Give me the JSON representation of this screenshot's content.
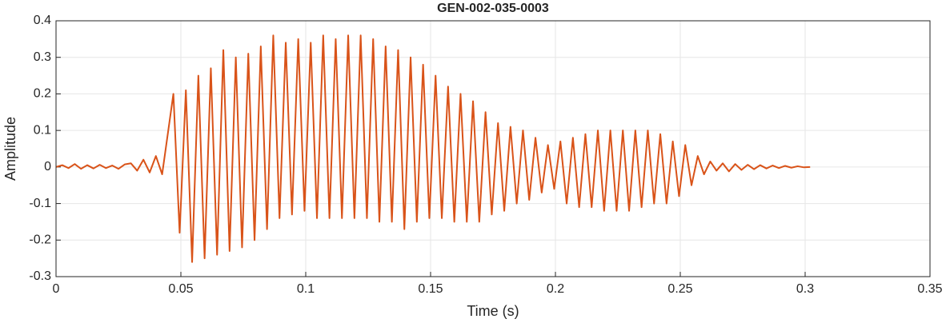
{
  "chart_data": {
    "type": "line",
    "title": "GEN-002-035-0003",
    "xlabel": "Time (s)",
    "ylabel": "Amplitude",
    "color": "#d95319",
    "grid": true,
    "xlim": [
      0,
      0.35
    ],
    "ylim": [
      -0.3,
      0.4
    ],
    "xticks": [
      0,
      0.05,
      0.1,
      0.15,
      0.2,
      0.25,
      0.3,
      0.35
    ],
    "yticks": [
      -0.3,
      -0.2,
      -0.1,
      0,
      0.1,
      0.2,
      0.3,
      0.4
    ],
    "x": [
      0,
      0.0025,
      0.005,
      0.0075,
      0.01,
      0.0125,
      0.015,
      0.0175,
      0.02,
      0.0225,
      0.025,
      0.0275,
      0.03,
      0.0325,
      0.035,
      0.0375,
      0.04,
      0.0425,
      0.047,
      0.0495,
      0.052,
      0.0545,
      0.057,
      0.0595,
      0.062,
      0.0645,
      0.067,
      0.0695,
      0.072,
      0.0745,
      0.077,
      0.0795,
      0.082,
      0.0845,
      0.087,
      0.0895,
      0.092,
      0.0945,
      0.097,
      0.0995,
      0.102,
      0.1045,
      0.107,
      0.1095,
      0.112,
      0.1145,
      0.117,
      0.1195,
      0.122,
      0.1245,
      0.127,
      0.1295,
      0.132,
      0.1345,
      0.137,
      0.1395,
      0.142,
      0.1445,
      0.147,
      0.1495,
      0.152,
      0.1545,
      0.157,
      0.1595,
      0.162,
      0.1645,
      0.167,
      0.1695,
      0.172,
      0.1745,
      0.177,
      0.1795,
      0.182,
      0.1845,
      0.187,
      0.1895,
      0.192,
      0.1945,
      0.197,
      0.1995,
      0.202,
      0.2045,
      0.207,
      0.2095,
      0.212,
      0.2145,
      0.217,
      0.2195,
      0.222,
      0.2245,
      0.227,
      0.2295,
      0.232,
      0.2345,
      0.237,
      0.2395,
      0.242,
      0.2445,
      0.247,
      0.2495,
      0.252,
      0.2545,
      0.257,
      0.2595,
      0.262,
      0.2645,
      0.267,
      0.2695,
      0.272,
      0.2745,
      0.277,
      0.2795,
      0.282,
      0.2845,
      0.287,
      0.2895,
      0.292,
      0.2945,
      0.297,
      0.2995,
      0.302
    ],
    "values": [
      0,
      0.005,
      -0.003,
      0.008,
      -0.005,
      0.005,
      -0.004,
      0.006,
      -0.003,
      0.004,
      -0.005,
      0.007,
      0.01,
      -0.01,
      0.02,
      -0.015,
      0.03,
      -0.02,
      0.2,
      -0.18,
      0.21,
      -0.26,
      0.25,
      -0.25,
      0.27,
      -0.24,
      0.32,
      -0.23,
      0.3,
      -0.22,
      0.31,
      -0.2,
      0.33,
      -0.17,
      0.36,
      -0.14,
      0.34,
      -0.13,
      0.35,
      -0.12,
      0.34,
      -0.14,
      0.36,
      -0.14,
      0.35,
      -0.14,
      0.36,
      -0.14,
      0.36,
      -0.14,
      0.35,
      -0.15,
      0.33,
      -0.15,
      0.32,
      -0.17,
      0.3,
      -0.15,
      0.28,
      -0.14,
      0.25,
      -0.14,
      0.22,
      -0.15,
      0.2,
      -0.15,
      0.18,
      -0.15,
      0.15,
      -0.13,
      0.12,
      -0.12,
      0.11,
      -0.1,
      0.1,
      -0.09,
      0.08,
      -0.07,
      0.06,
      -0.06,
      0.07,
      -0.1,
      0.08,
      -0.11,
      0.09,
      -0.11,
      0.1,
      -0.12,
      0.1,
      -0.12,
      0.1,
      -0.12,
      0.1,
      -0.11,
      0.1,
      -0.1,
      0.09,
      -0.1,
      0.07,
      -0.08,
      0.06,
      -0.05,
      0.03,
      -0.02,
      0.015,
      -0.01,
      0.01,
      -0.012,
      0.008,
      -0.008,
      0.006,
      -0.006,
      0.005,
      -0.004,
      0.004,
      -0.003,
      0.003,
      -0.002,
      0.002,
      -0.001,
      0
    ]
  }
}
